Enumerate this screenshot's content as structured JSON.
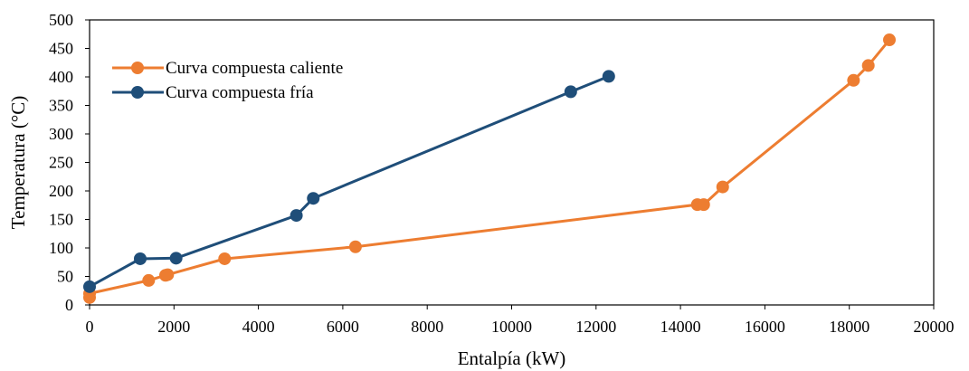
{
  "chart_data": {
    "type": "line",
    "title": "",
    "xlabel": "Entalpía (kW)",
    "ylabel": "Temperatura  (°C)",
    "xlim": [
      0,
      20000
    ],
    "ylim": [
      0,
      500
    ],
    "x_ticks": [
      0,
      2000,
      4000,
      6000,
      8000,
      10000,
      12000,
      14000,
      16000,
      18000,
      20000
    ],
    "y_ticks": [
      0,
      50,
      100,
      150,
      200,
      250,
      300,
      350,
      400,
      450,
      500
    ],
    "grid": false,
    "legend_position": "top-left",
    "series": [
      {
        "name": "Curva compuesta caliente",
        "color": "#ED7D31",
        "points": [
          [
            0,
            13
          ],
          [
            0,
            20
          ],
          [
            1400,
            43
          ],
          [
            1800,
            52
          ],
          [
            1850,
            53
          ],
          [
            3200,
            81
          ],
          [
            6300,
            102
          ],
          [
            14400,
            176
          ],
          [
            14550,
            176
          ],
          [
            15000,
            207
          ],
          [
            18100,
            394
          ],
          [
            18450,
            420
          ],
          [
            18950,
            465
          ]
        ]
      },
      {
        "name": "Curva compuesta fría",
        "color": "#1F4E79",
        "points": [
          [
            0,
            32
          ],
          [
            1200,
            81
          ],
          [
            2050,
            82
          ],
          [
            4900,
            157
          ],
          [
            5300,
            187
          ],
          [
            11400,
            374
          ],
          [
            12300,
            401
          ]
        ]
      }
    ]
  }
}
